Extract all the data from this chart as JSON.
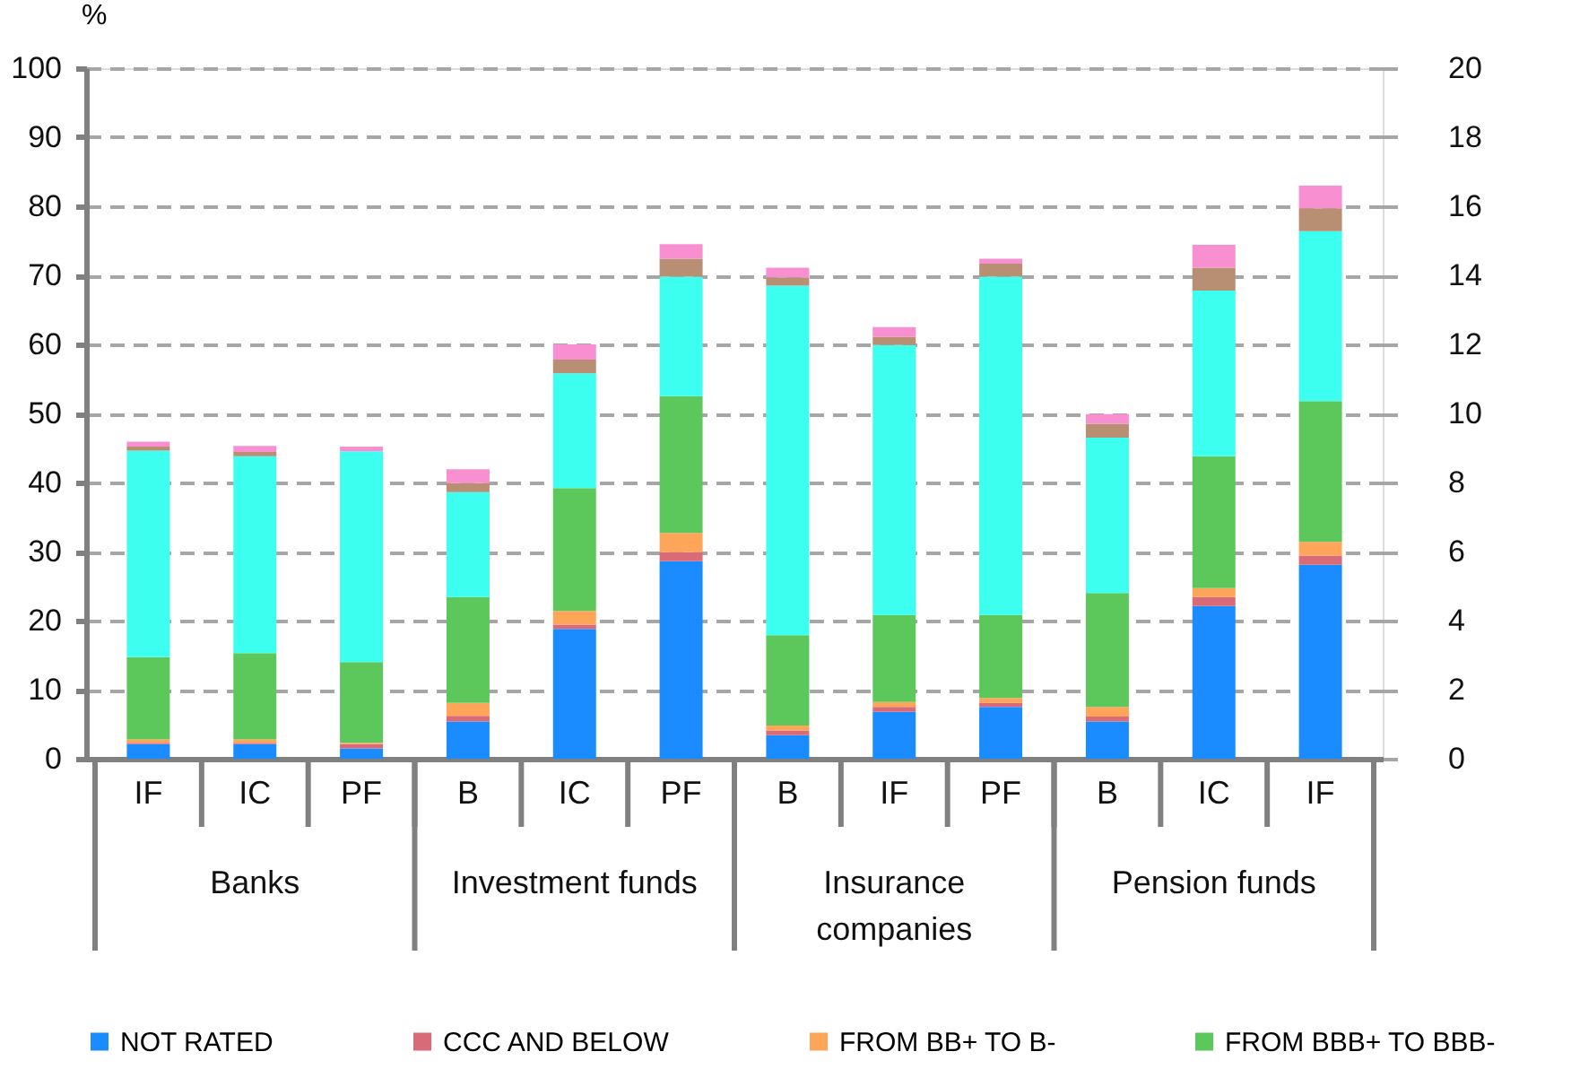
{
  "chart_data": {
    "type": "bar",
    "stacked": true,
    "ylabel": "%",
    "categories": [
      "IF",
      "IC",
      "PF",
      "B",
      "IC",
      "PF",
      "B",
      "IF",
      "PF",
      "B",
      "IC",
      "IF"
    ],
    "annotations": [
      "Banks",
      "Investment funds",
      "Insurance companies",
      "Pension funds"
    ],
    "series": [
      {
        "name": "NOT RATED",
        "color": "#1a8cff",
        "values": [
          2.1,
          2.1,
          1.5,
          5.4,
          18.8,
          28.6,
          3.4,
          6.8,
          7.5,
          5.4,
          22.1,
          28.1
        ]
      },
      {
        "name": "CCC AND BELOW",
        "color": "#d96b78",
        "values": [
          0.2,
          0.2,
          0.6,
          0.8,
          0.6,
          1.3,
          0.7,
          0.7,
          0.6,
          0.7,
          1.3,
          1.3
        ]
      },
      {
        "name": "FROM BB+ TO B-",
        "color": "#ffa55a",
        "values": [
          0.5,
          0.5,
          0.2,
          1.9,
          2.0,
          2.8,
          0.7,
          0.7,
          0.7,
          1.4,
          1.3,
          2.0
        ]
      },
      {
        "name": "FROM BBB+ TO BBB-",
        "color": "#5cc85c",
        "values": [
          11.9,
          12.5,
          11.7,
          15.3,
          17.8,
          19.8,
          13.1,
          12.6,
          12.0,
          16.5,
          19.1,
          20.4
        ]
      },
      {
        "color": "#3dfff0",
        "values": [
          29.9,
          28.5,
          30.5,
          15.2,
          16.6,
          17.3,
          50.6,
          39.1,
          49.0,
          22.5,
          24.0,
          24.6
        ]
      },
      {
        "color": "#b98f74",
        "values": [
          0.6,
          0.6,
          null,
          1.3,
          2.0,
          2.6,
          1.2,
          1.2,
          1.9,
          2.0,
          3.3,
          3.3
        ]
      },
      {
        "color": "#f78fd0",
        "values": [
          0.7,
          0.9,
          0.7,
          2.0,
          2.2,
          2.1,
          1.4,
          1.4,
          0.7,
          1.4,
          3.3,
          3.3
        ]
      }
    ],
    "ylim": [
      0,
      100
    ],
    "yticks": [
      0,
      10,
      20,
      30,
      40,
      50,
      60,
      70,
      80,
      90,
      100
    ],
    "y2lim": [
      0,
      20
    ],
    "y2ticks": [
      0,
      2,
      4,
      6,
      8,
      10,
      12,
      14,
      16,
      18,
      20
    ],
    "grid": "y",
    "legend": "bottom"
  }
}
